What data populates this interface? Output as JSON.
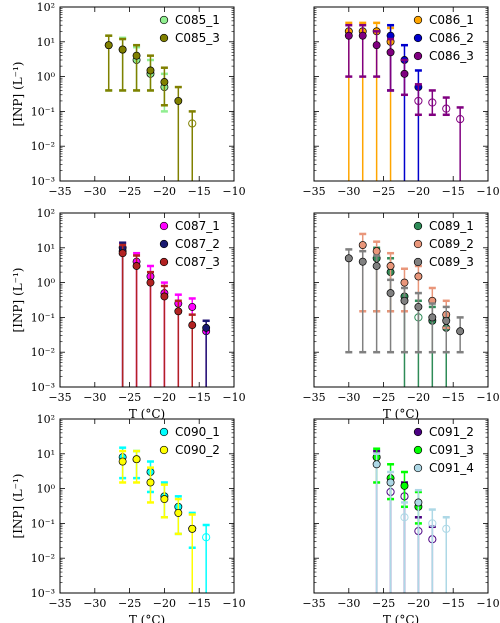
{
  "figure": {
    "background": "#ffffff"
  },
  "chart_data": [
    {
      "type": "scatter",
      "xlabel": "",
      "ylabel": "[INP] (L⁻¹)",
      "xlim": [
        -35,
        -10
      ],
      "ylim": [
        0.001,
        100
      ],
      "yscale": "log",
      "xticks": [
        "−35",
        "−30",
        "−25",
        "−20",
        "−15",
        "−10"
      ],
      "yticks": [
        "10⁻³",
        "10⁻²",
        "10⁻¹",
        "10⁰",
        "10¹",
        "10²"
      ],
      "legend_position": "top-right",
      "series": [
        {
          "name": "C085_1",
          "color": "#90ee90",
          "filled": true,
          "points": [
            {
              "x": -28,
              "y": 8,
              "lo": 0.4,
              "hi": 15
            },
            {
              "x": -26,
              "y": 6,
              "lo": 0.4,
              "hi": 13
            },
            {
              "x": -24,
              "y": 3,
              "lo": 0.4,
              "hi": 7
            },
            {
              "x": -22,
              "y": 1.2,
              "lo": 0.4,
              "hi": 3
            },
            {
              "x": -20,
              "y": 0.5,
              "lo": 0.1,
              "hi": 1.2
            }
          ]
        },
        {
          "name": "C085_3",
          "color": "#808000",
          "filled": true,
          "points": [
            {
              "x": -28,
              "y": 8,
              "lo": 0.4,
              "hi": 15
            },
            {
              "x": -26,
              "y": 6,
              "lo": 0.4,
              "hi": 12
            },
            {
              "x": -24,
              "y": 4,
              "lo": 0.4,
              "hi": 8
            },
            {
              "x": -22,
              "y": 1.5,
              "lo": 0.4,
              "hi": 4
            },
            {
              "x": -20,
              "y": 0.7,
              "lo": 0.15,
              "hi": 1.8
            },
            {
              "x": -18,
              "y": 0.2,
              "lo": 0.001,
              "hi": 0.5
            },
            {
              "x": -16,
              "y": 0.045,
              "lo": 0.001,
              "hi": 0.1,
              "filled": false
            }
          ]
        }
      ]
    },
    {
      "type": "scatter",
      "xlabel": "",
      "ylabel": "",
      "xlim": [
        -35,
        -10
      ],
      "ylim": [
        0.001,
        100
      ],
      "yscale": "log",
      "xticks": [
        "−35",
        "−30",
        "−25",
        "−20",
        "−15",
        "−10"
      ],
      "yticks": [],
      "legend_position": "top-right",
      "series": [
        {
          "name": "C086_1",
          "color": "#ffa500",
          "filled": true,
          "points": [
            {
              "x": -30,
              "y": 20,
              "lo": 0.001,
              "hi": 35
            },
            {
              "x": -28,
              "y": 20,
              "lo": 0.001,
              "hi": 35
            },
            {
              "x": -26,
              "y": 20,
              "lo": 0.001,
              "hi": 35
            },
            {
              "x": -24,
              "y": 10,
              "lo": 0.001,
              "hi": 25
            }
          ]
        },
        {
          "name": "C086_2",
          "color": "#0000cd",
          "filled": true,
          "points": [
            {
              "x": -24,
              "y": 15,
              "lo": 0.4,
              "hi": 30
            },
            {
              "x": -22,
              "y": 3,
              "lo": 0.001,
              "hi": 8
            },
            {
              "x": -20,
              "y": 0.5,
              "lo": 0.001,
              "hi": 1.5
            }
          ]
        },
        {
          "name": "C086_3",
          "color": "#800080",
          "filled": true,
          "points": [
            {
              "x": -30,
              "y": 15,
              "lo": 1,
              "hi": 30
            },
            {
              "x": -28,
              "y": 15,
              "lo": 1,
              "hi": 30
            },
            {
              "x": -26,
              "y": 8,
              "lo": 1,
              "hi": 20
            },
            {
              "x": -24,
              "y": 5,
              "lo": 0.4,
              "hi": 12
            },
            {
              "x": -22,
              "y": 1.2,
              "lo": 0.3,
              "hi": 3
            },
            {
              "x": -20,
              "y": 0.2,
              "lo": 0.08,
              "hi": 0.6,
              "filled": false
            },
            {
              "x": -18,
              "y": 0.18,
              "lo": 0.08,
              "hi": 0.4,
              "filled": false
            },
            {
              "x": -16,
              "y": 0.12,
              "lo": 0.08,
              "hi": 0.25,
              "filled": false
            },
            {
              "x": -14,
              "y": 0.06,
              "lo": 0.001,
              "hi": 0.13,
              "filled": false
            }
          ]
        }
      ]
    },
    {
      "type": "scatter",
      "xlabel": "T (°C)",
      "ylabel": "[INP] (L⁻¹)",
      "xlim": [
        -35,
        -10
      ],
      "ylim": [
        0.001,
        100
      ],
      "yscale": "log",
      "xticks": [
        "−35",
        "−30",
        "−25",
        "−20",
        "−15",
        "−10"
      ],
      "yticks": [
        "10⁻³",
        "10⁻²",
        "10⁻¹",
        "10⁰",
        "10¹",
        "10²"
      ],
      "legend_position": "top-right",
      "series": [
        {
          "name": "C087_1",
          "color": "#ff00ff",
          "filled": true,
          "points": [
            {
              "x": -26,
              "y": 8,
              "lo": 0.001,
              "hi": 14
            },
            {
              "x": -24,
              "y": 4,
              "lo": 0.001,
              "hi": 7
            },
            {
              "x": -22,
              "y": 1.5,
              "lo": 0.001,
              "hi": 3
            },
            {
              "x": -20,
              "y": 0.5,
              "lo": 0.001,
              "hi": 1
            },
            {
              "x": -18,
              "y": 0.25,
              "lo": 0.001,
              "hi": 0.45
            },
            {
              "x": -16,
              "y": 0.2,
              "lo": 0.001,
              "hi": 0.35
            },
            {
              "x": -14,
              "y": 0.04,
              "lo": 0.001,
              "hi": 0.08
            }
          ]
        },
        {
          "name": "C087_2",
          "color": "#191970",
          "filled": true,
          "points": [
            {
              "x": -26,
              "y": 10,
              "lo": 0.001,
              "hi": 14
            },
            {
              "x": -14,
              "y": 0.05,
              "lo": 0.001,
              "hi": 0.08
            }
          ]
        },
        {
          "name": "C087_3",
          "color": "#b22222",
          "filled": true,
          "points": [
            {
              "x": -26,
              "y": 7,
              "lo": 0.001,
              "hi": 12
            },
            {
              "x": -24,
              "y": 3,
              "lo": 0.001,
              "hi": 6
            },
            {
              "x": -22,
              "y": 1,
              "lo": 0.001,
              "hi": 2
            },
            {
              "x": -20,
              "y": 0.4,
              "lo": 0.001,
              "hi": 0.8
            },
            {
              "x": -18,
              "y": 0.15,
              "lo": 0.001,
              "hi": 0.3
            },
            {
              "x": -16,
              "y": 0.06,
              "lo": 0.001,
              "hi": 0.12
            }
          ]
        }
      ]
    },
    {
      "type": "scatter",
      "xlabel": "T (°C)",
      "ylabel": "",
      "xlim": [
        -35,
        -10
      ],
      "ylim": [
        0.001,
        100
      ],
      "yscale": "log",
      "xticks": [
        "−35",
        "−30",
        "−25",
        "−20",
        "−15",
        "−10"
      ],
      "yticks": [],
      "legend_position": "top-right",
      "series": [
        {
          "name": "C089_1",
          "color": "#2e8b57",
          "filled": true,
          "points": [
            {
              "x": -26,
              "y": 5,
              "lo": 0.15,
              "hi": 10
            },
            {
              "x": -24,
              "y": 2,
              "lo": 0.15,
              "hi": 5
            },
            {
              "x": -22,
              "y": 0.4,
              "lo": 0.001,
              "hi": 1
            },
            {
              "x": -20,
              "y": 0.1,
              "lo": 0.001,
              "hi": 0.3,
              "filled": false
            },
            {
              "x": -18,
              "y": 0.08,
              "lo": 0.001,
              "hi": 0.2
            },
            {
              "x": -16,
              "y": 0.05,
              "lo": 0.001,
              "hi": 0.1
            }
          ]
        },
        {
          "name": "C089_2",
          "color": "#e9967a",
          "filled": true,
          "points": [
            {
              "x": -28,
              "y": 12,
              "lo": 0.15,
              "hi": 25
            },
            {
              "x": -26,
              "y": 8,
              "lo": 0.15,
              "hi": 15
            },
            {
              "x": -24,
              "y": 3,
              "lo": 0.15,
              "hi": 7
            },
            {
              "x": -22,
              "y": 1,
              "lo": 0.15,
              "hi": 2.5
            },
            {
              "x": -20,
              "y": 1.5,
              "lo": 0.2,
              "hi": 3
            },
            {
              "x": -18,
              "y": 0.3,
              "lo": 0.1,
              "hi": 0.7
            },
            {
              "x": -16,
              "y": 0.12,
              "lo": 0.05,
              "hi": 0.3
            }
          ]
        },
        {
          "name": "C089_3",
          "color": "#808080",
          "filled": true,
          "points": [
            {
              "x": -30,
              "y": 5,
              "lo": 0.01,
              "hi": 9
            },
            {
              "x": -28,
              "y": 4,
              "lo": 0.01,
              "hi": 8
            },
            {
              "x": -26,
              "y": 3,
              "lo": 0.01,
              "hi": 6
            },
            {
              "x": -24,
              "y": 0.5,
              "lo": 0.01,
              "hi": 1.2
            },
            {
              "x": -22,
              "y": 0.3,
              "lo": 0.01,
              "hi": 0.7
            },
            {
              "x": -20,
              "y": 0.2,
              "lo": 0.01,
              "hi": 0.5
            },
            {
              "x": -18,
              "y": 0.1,
              "lo": 0.01,
              "hi": 0.25
            },
            {
              "x": -16,
              "y": 0.08,
              "lo": 0.01,
              "hi": 0.2
            },
            {
              "x": -14,
              "y": 0.04,
              "lo": 0.01,
              "hi": 0.1
            }
          ]
        }
      ]
    },
    {
      "type": "scatter",
      "xlabel": "T (°C)",
      "ylabel": "[INP] (L⁻¹)",
      "xlim": [
        -35,
        -10
      ],
      "ylim": [
        0.001,
        100
      ],
      "yscale": "log",
      "xticks": [
        "−35",
        "−30",
        "−25",
        "−20",
        "−15",
        "−10"
      ],
      "yticks": [
        "10⁻³",
        "10⁻²",
        "10⁻¹",
        "10⁰",
        "10¹",
        "10²"
      ],
      "legend_position": "top-right",
      "series": [
        {
          "name": "C090_1",
          "color": "#00ffff",
          "filled": true,
          "points": [
            {
              "x": -26,
              "y": 8,
              "lo": 2,
              "hi": 15
            },
            {
              "x": -24,
              "y": 7,
              "lo": 2,
              "hi": 12
            },
            {
              "x": -22,
              "y": 3,
              "lo": 0.8,
              "hi": 6
            },
            {
              "x": -20,
              "y": 0.6,
              "lo": 0.15,
              "hi": 1.5
            },
            {
              "x": -18,
              "y": 0.3,
              "lo": 0.05,
              "hi": 0.6
            },
            {
              "x": -16,
              "y": 0.07,
              "lo": 0.02,
              "hi": 0.2
            },
            {
              "x": -14,
              "y": 0.04,
              "lo": 0.001,
              "hi": 0.09,
              "filled": false
            }
          ]
        },
        {
          "name": "C090_2",
          "color": "#ffff00",
          "filled": true,
          "points": [
            {
              "x": -26,
              "y": 6,
              "lo": 1.5,
              "hi": 12
            },
            {
              "x": -24,
              "y": 7,
              "lo": 1.5,
              "hi": 12
            },
            {
              "x": -22,
              "y": 1.5,
              "lo": 0.4,
              "hi": 4
            },
            {
              "x": -20,
              "y": 0.5,
              "lo": 0.15,
              "hi": 1.3
            },
            {
              "x": -18,
              "y": 0.2,
              "lo": 0.05,
              "hi": 0.5
            },
            {
              "x": -16,
              "y": 0.07,
              "lo": 0.001,
              "hi": 0.18
            }
          ]
        }
      ]
    },
    {
      "type": "scatter",
      "xlabel": "T (°C)",
      "ylabel": "",
      "xlim": [
        -35,
        -10
      ],
      "ylim": [
        0.001,
        100
      ],
      "yscale": "log",
      "xticks": [
        "−35",
        "−30",
        "−25",
        "−20",
        "−15",
        "−10"
      ],
      "yticks": [],
      "legend_position": "top-right",
      "series": [
        {
          "name": "C091_2",
          "color": "#4b0082",
          "filled": true,
          "points": [
            {
              "x": -26,
              "y": 8,
              "lo": 0.001,
              "hi": 12
            },
            {
              "x": -24,
              "y": 0.8,
              "lo": 0.001,
              "hi": 2,
              "filled": false
            },
            {
              "x": -22,
              "y": 0.6,
              "lo": 0.001,
              "hi": 1.5,
              "filled": false
            },
            {
              "x": -20,
              "y": 0.06,
              "lo": 0.001,
              "hi": 0.15,
              "filled": false
            },
            {
              "x": -18,
              "y": 0.035,
              "lo": 0.001,
              "hi": 0.08,
              "filled": false
            }
          ]
        },
        {
          "name": "C091_3",
          "color": "#00ff00",
          "filled": true,
          "points": [
            {
              "x": -26,
              "y": 8,
              "lo": 1.5,
              "hi": 14
            },
            {
              "x": -24,
              "y": 2,
              "lo": 0.5,
              "hi": 5
            },
            {
              "x": -22,
              "y": 1.2,
              "lo": 0.3,
              "hi": 3
            },
            {
              "x": -20,
              "y": 0.3,
              "lo": 0.1,
              "hi": 0.8
            }
          ]
        },
        {
          "name": "C091_4",
          "color": "#add8e6",
          "filled": true,
          "points": [
            {
              "x": -26,
              "y": 5,
              "lo": 0.001,
              "hi": 10
            },
            {
              "x": -24,
              "y": 1.5,
              "lo": 0.001,
              "hi": 3
            },
            {
              "x": -22,
              "y": 0.15,
              "lo": 0.001,
              "hi": 0.4,
              "filled": false
            },
            {
              "x": -20,
              "y": 0.4,
              "lo": 0.001,
              "hi": 0.9
            },
            {
              "x": -18,
              "y": 0.1,
              "lo": 0.001,
              "hi": 0.25,
              "filled": false
            },
            {
              "x": -16,
              "y": 0.07,
              "lo": 0.001,
              "hi": 0.15,
              "filled": false
            }
          ]
        }
      ]
    }
  ]
}
